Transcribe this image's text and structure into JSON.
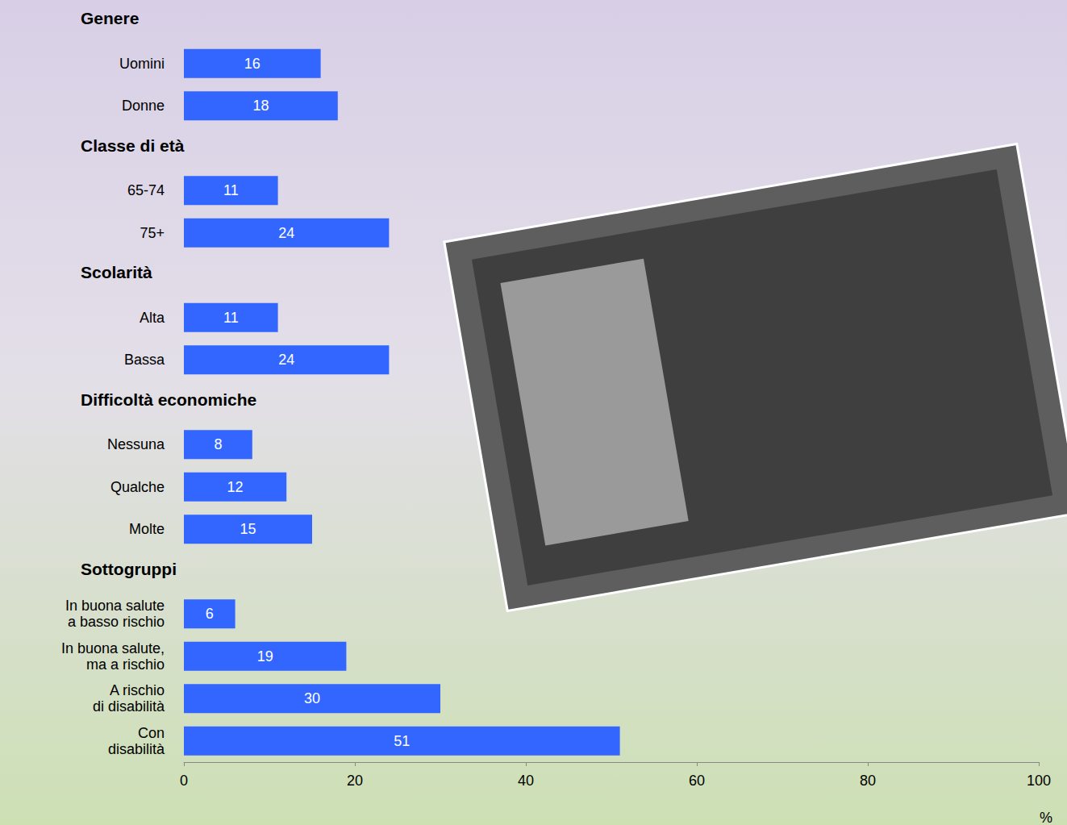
{
  "chart_data": {
    "type": "bar",
    "orientation": "horizontal",
    "data_labels": true,
    "grid": false,
    "color": "#3366ff",
    "xlim": [
      0,
      100
    ],
    "xticks": [
      0,
      20,
      40,
      60,
      80,
      100
    ],
    "x_label": "%",
    "groups": [
      {
        "title": "Genere",
        "categories": [
          "Uomini",
          "Donne"
        ],
        "values": [
          16,
          18
        ]
      },
      {
        "title": "Classe di età",
        "categories": [
          "65-74",
          "75+"
        ],
        "values": [
          11,
          24
        ]
      },
      {
        "title": "Scolarità",
        "categories": [
          "Alta",
          "Bassa"
        ],
        "values": [
          11,
          24
        ]
      },
      {
        "title": "Difficoltà economiche",
        "categories": [
          "Nessuna",
          "Qualche",
          "Molte"
        ],
        "values": [
          8,
          12,
          15
        ]
      },
      {
        "title": "Sottogruppi",
        "categories": [
          "In buona salute\na basso rischio",
          "In buona salute,\nma a rischio",
          "A rischio\ndi disabilità",
          "Con\ndisabilità"
        ],
        "values": [
          6,
          19,
          30,
          51
        ]
      }
    ]
  }
}
